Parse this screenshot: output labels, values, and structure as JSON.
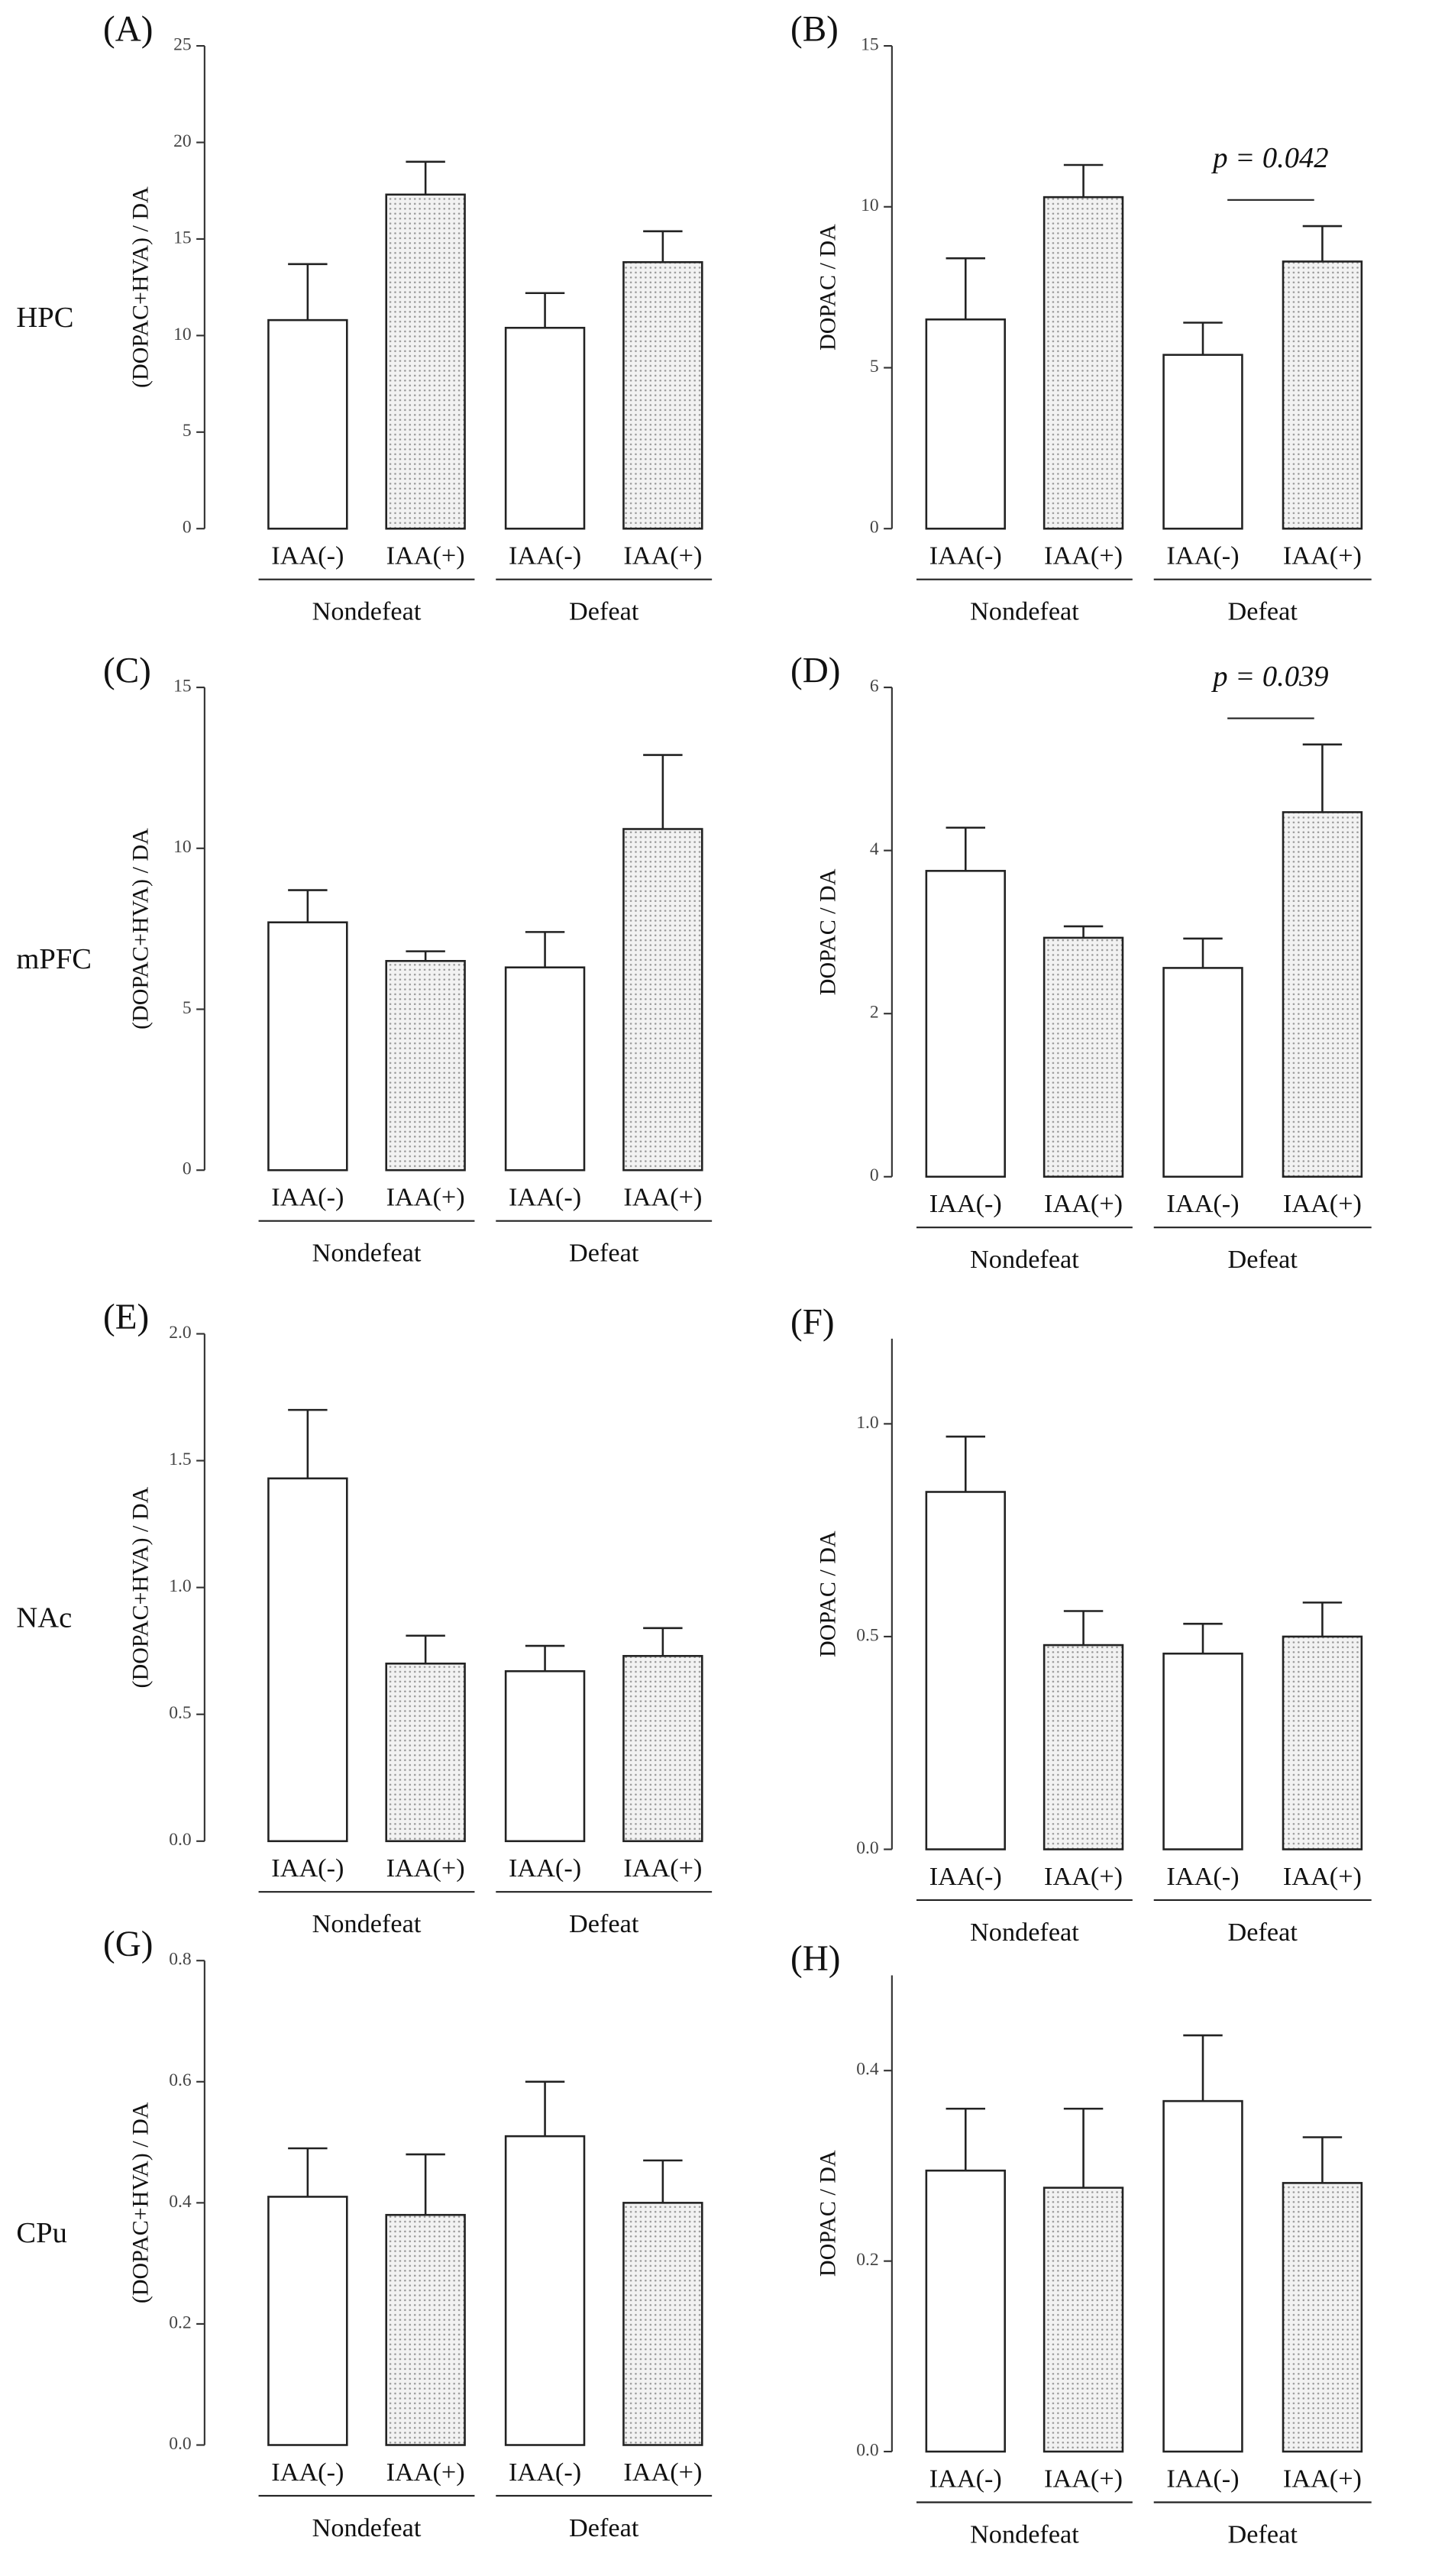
{
  "rows": [
    "HPC",
    "mPFC",
    "NAc",
    "CPu"
  ],
  "chart_data": [
    {
      "type": "bar",
      "panel": "(A)",
      "ylabel": "(DOPAC+HVA) / DA",
      "categories": [
        "IAA(-)",
        "IAA(+)",
        "IAA(-)",
        "IAA(+)"
      ],
      "groups": [
        "Nondefeat",
        "Defeat"
      ],
      "values": [
        10.8,
        17.3,
        10.4,
        13.8
      ],
      "errors": [
        2.9,
        1.7,
        1.8,
        1.6
      ],
      "ylim": [
        0,
        25
      ],
      "yticks": [
        0,
        5,
        10,
        15,
        20,
        25
      ]
    },
    {
      "type": "bar",
      "panel": "(B)",
      "ylabel": "DOPAC / DA",
      "categories": [
        "IAA(-)",
        "IAA(+)",
        "IAA(-)",
        "IAA(+)"
      ],
      "groups": [
        "Nondefeat",
        "Defeat"
      ],
      "values": [
        6.5,
        10.3,
        5.4,
        8.3
      ],
      "errors": [
        1.9,
        1.0,
        1.0,
        1.1
      ],
      "ylim": [
        0,
        15
      ],
      "yticks": [
        0,
        5,
        10,
        15
      ],
      "annotation": "p = 0.042"
    },
    {
      "type": "bar",
      "panel": "(C)",
      "ylabel": "(DOPAC+HVA) / DA",
      "categories": [
        "IAA(-)",
        "IAA(+)",
        "IAA(-)",
        "IAA(+)"
      ],
      "groups": [
        "Nondefeat",
        "Defeat"
      ],
      "values": [
        7.7,
        6.5,
        6.3,
        10.6
      ],
      "errors": [
        1.0,
        0.3,
        1.1,
        2.3
      ],
      "ylim": [
        0,
        15
      ],
      "yticks": [
        0,
        5,
        10,
        15
      ]
    },
    {
      "type": "bar",
      "panel": "(D)",
      "ylabel": "DOPAC / DA",
      "categories": [
        "IAA(-)",
        "IAA(+)",
        "IAA(-)",
        "IAA(+)"
      ],
      "groups": [
        "Nondefeat",
        "Defeat"
      ],
      "values": [
        3.75,
        2.93,
        2.56,
        4.47
      ],
      "errors": [
        0.53,
        0.14,
        0.36,
        0.83
      ],
      "ylim": [
        0,
        6
      ],
      "yticks": [
        0,
        2,
        4,
        6
      ],
      "annotation": "p = 0.039"
    },
    {
      "type": "bar",
      "panel": "(E)",
      "ylabel": "(DOPAC+HVA) / DA",
      "categories": [
        "IAA(-)",
        "IAA(+)",
        "IAA(-)",
        "IAA(+)"
      ],
      "groups": [
        "Nondefeat",
        "Defeat"
      ],
      "values": [
        1.43,
        0.7,
        0.67,
        0.73
      ],
      "errors": [
        0.27,
        0.11,
        0.1,
        0.11
      ],
      "ylim": [
        0,
        2
      ],
      "yticks": [
        {
          "value": 0,
          "label": "0.0"
        },
        0.5,
        {
          "value": 1,
          "label": "1.0"
        },
        1.5,
        {
          "value": 2,
          "label": "2.0"
        }
      ]
    },
    {
      "type": "bar",
      "panel": "(F)",
      "ylabel": "DOPAC / DA",
      "categories": [
        "IAA(-)",
        "IAA(+)",
        "IAA(-)",
        "IAA(+)"
      ],
      "groups": [
        "Nondefeat",
        "Defeat"
      ],
      "values": [
        0.84,
        0.48,
        0.46,
        0.5
      ],
      "errors": [
        0.13,
        0.08,
        0.07,
        0.08
      ],
      "ylim": [
        0,
        1.2
      ],
      "yticks": [
        {
          "value": 0,
          "label": "0.0"
        },
        0.5,
        {
          "value": 1,
          "label": "1.0"
        }
      ]
    },
    {
      "type": "bar",
      "panel": "(G)",
      "ylabel": "(DOPAC+HVA) / DA",
      "categories": [
        "IAA(-)",
        "IAA(+)",
        "IAA(-)",
        "IAA(+)"
      ],
      "groups": [
        "Nondefeat",
        "Defeat"
      ],
      "values": [
        0.41,
        0.38,
        0.51,
        0.4
      ],
      "errors": [
        0.08,
        0.1,
        0.09,
        0.07
      ],
      "ylim": [
        0,
        0.8
      ],
      "yticks": [
        {
          "value": 0,
          "label": "0.0"
        },
        0.2,
        0.4,
        0.6,
        0.8
      ]
    },
    {
      "type": "bar",
      "panel": "(H)",
      "ylabel": "DOPAC / DA",
      "categories": [
        "IAA(-)",
        "IAA(+)",
        "IAA(-)",
        "IAA(+)"
      ],
      "groups": [
        "Nondefeat",
        "Defeat"
      ],
      "values": [
        0.295,
        0.277,
        0.368,
        0.282
      ],
      "errors": [
        0.065,
        0.083,
        0.069,
        0.048
      ],
      "ylim": [
        0,
        0.5
      ],
      "yticks": [
        {
          "value": 0,
          "label": "0.0"
        },
        0.2,
        0.4
      ]
    }
  ]
}
